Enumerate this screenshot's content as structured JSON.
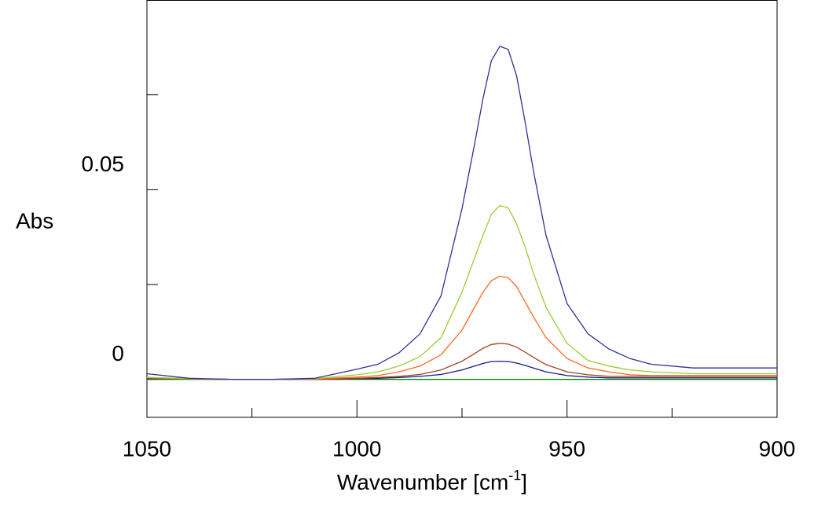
{
  "chart_data": {
    "type": "line",
    "x_label": "Wavenumber [cm",
    "x_label_sup": "-1",
    "x_label_end": "]",
    "y_label": "Abs",
    "x": [
      1050,
      1040,
      1030,
      1020,
      1010,
      1000,
      995,
      990,
      985,
      980,
      975,
      972,
      970,
      968,
      966,
      964,
      962,
      960,
      958,
      955,
      950,
      945,
      940,
      935,
      930,
      920,
      910,
      900
    ],
    "series": [
      {
        "name": "s1",
        "color": "#2e3192",
        "values": [
          0.0015,
          0.0003,
          0.0,
          0.0,
          0.0003,
          0.0027,
          0.004,
          0.007,
          0.012,
          0.022,
          0.045,
          0.062,
          0.074,
          0.084,
          0.0878,
          0.087,
          0.08,
          0.068,
          0.055,
          0.038,
          0.02,
          0.012,
          0.008,
          0.0055,
          0.004,
          0.003,
          0.003,
          0.003
        ]
      },
      {
        "name": "s2",
        "color": "#9acd32",
        "values": [
          0.0005,
          0.0002,
          0.0,
          0.0,
          0.0002,
          0.0012,
          0.002,
          0.0035,
          0.006,
          0.011,
          0.023,
          0.032,
          0.038,
          0.0435,
          0.0458,
          0.0452,
          0.041,
          0.035,
          0.028,
          0.019,
          0.0095,
          0.005,
          0.0035,
          0.0025,
          0.002,
          0.0015,
          0.0015,
          0.0015
        ]
      },
      {
        "name": "s3",
        "color": "#ff6a1a",
        "values": [
          0.0005,
          0.0002,
          0.0,
          0.0,
          0.0001,
          0.0006,
          0.001,
          0.002,
          0.0035,
          0.0065,
          0.013,
          0.019,
          0.023,
          0.026,
          0.0272,
          0.0268,
          0.0245,
          0.0205,
          0.0165,
          0.011,
          0.0055,
          0.003,
          0.002,
          0.0012,
          0.001,
          0.001,
          0.001,
          0.001
        ]
      },
      {
        "name": "s4",
        "color": "#a0401a",
        "values": [
          0.0003,
          0.0001,
          0.0,
          0.0,
          0.0,
          0.0003,
          0.0005,
          0.0008,
          0.0013,
          0.0025,
          0.0048,
          0.0068,
          0.0082,
          0.0092,
          0.0095,
          0.0093,
          0.0085,
          0.0072,
          0.0058,
          0.0039,
          0.002,
          0.0012,
          0.0008,
          0.0008,
          0.0008,
          0.0008,
          0.0008,
          0.0008
        ]
      },
      {
        "name": "s5",
        "color": "#1a1a80",
        "values": [
          0.0002,
          0.0001,
          0.0,
          0.0,
          0.0,
          0.0002,
          0.0003,
          0.0005,
          0.0008,
          0.0013,
          0.0025,
          0.0035,
          0.0042,
          0.0047,
          0.0048,
          0.0047,
          0.0043,
          0.0037,
          0.003,
          0.002,
          0.001,
          0.0006,
          0.0004,
          0.0004,
          0.0004,
          0.0004,
          0.0004,
          0.0004
        ]
      },
      {
        "name": "s6",
        "color": "#008000",
        "values": [
          0,
          0,
          0,
          0,
          0,
          0,
          0,
          0,
          0,
          0,
          0,
          0,
          0,
          0,
          0,
          0,
          0,
          0,
          0,
          0,
          0,
          0,
          0,
          0,
          0,
          0,
          0,
          0
        ]
      }
    ],
    "xlim": [
      1050,
      900
    ],
    "xticks": [
      1050,
      1000,
      950,
      900
    ],
    "xminorticks": [
      1025,
      975,
      925
    ],
    "ylim": [
      -0.01,
      0.1
    ],
    "yticks": [
      0,
      0.05
    ],
    "yminorticks": [
      0.025,
      0.075
    ],
    "legend": false
  }
}
